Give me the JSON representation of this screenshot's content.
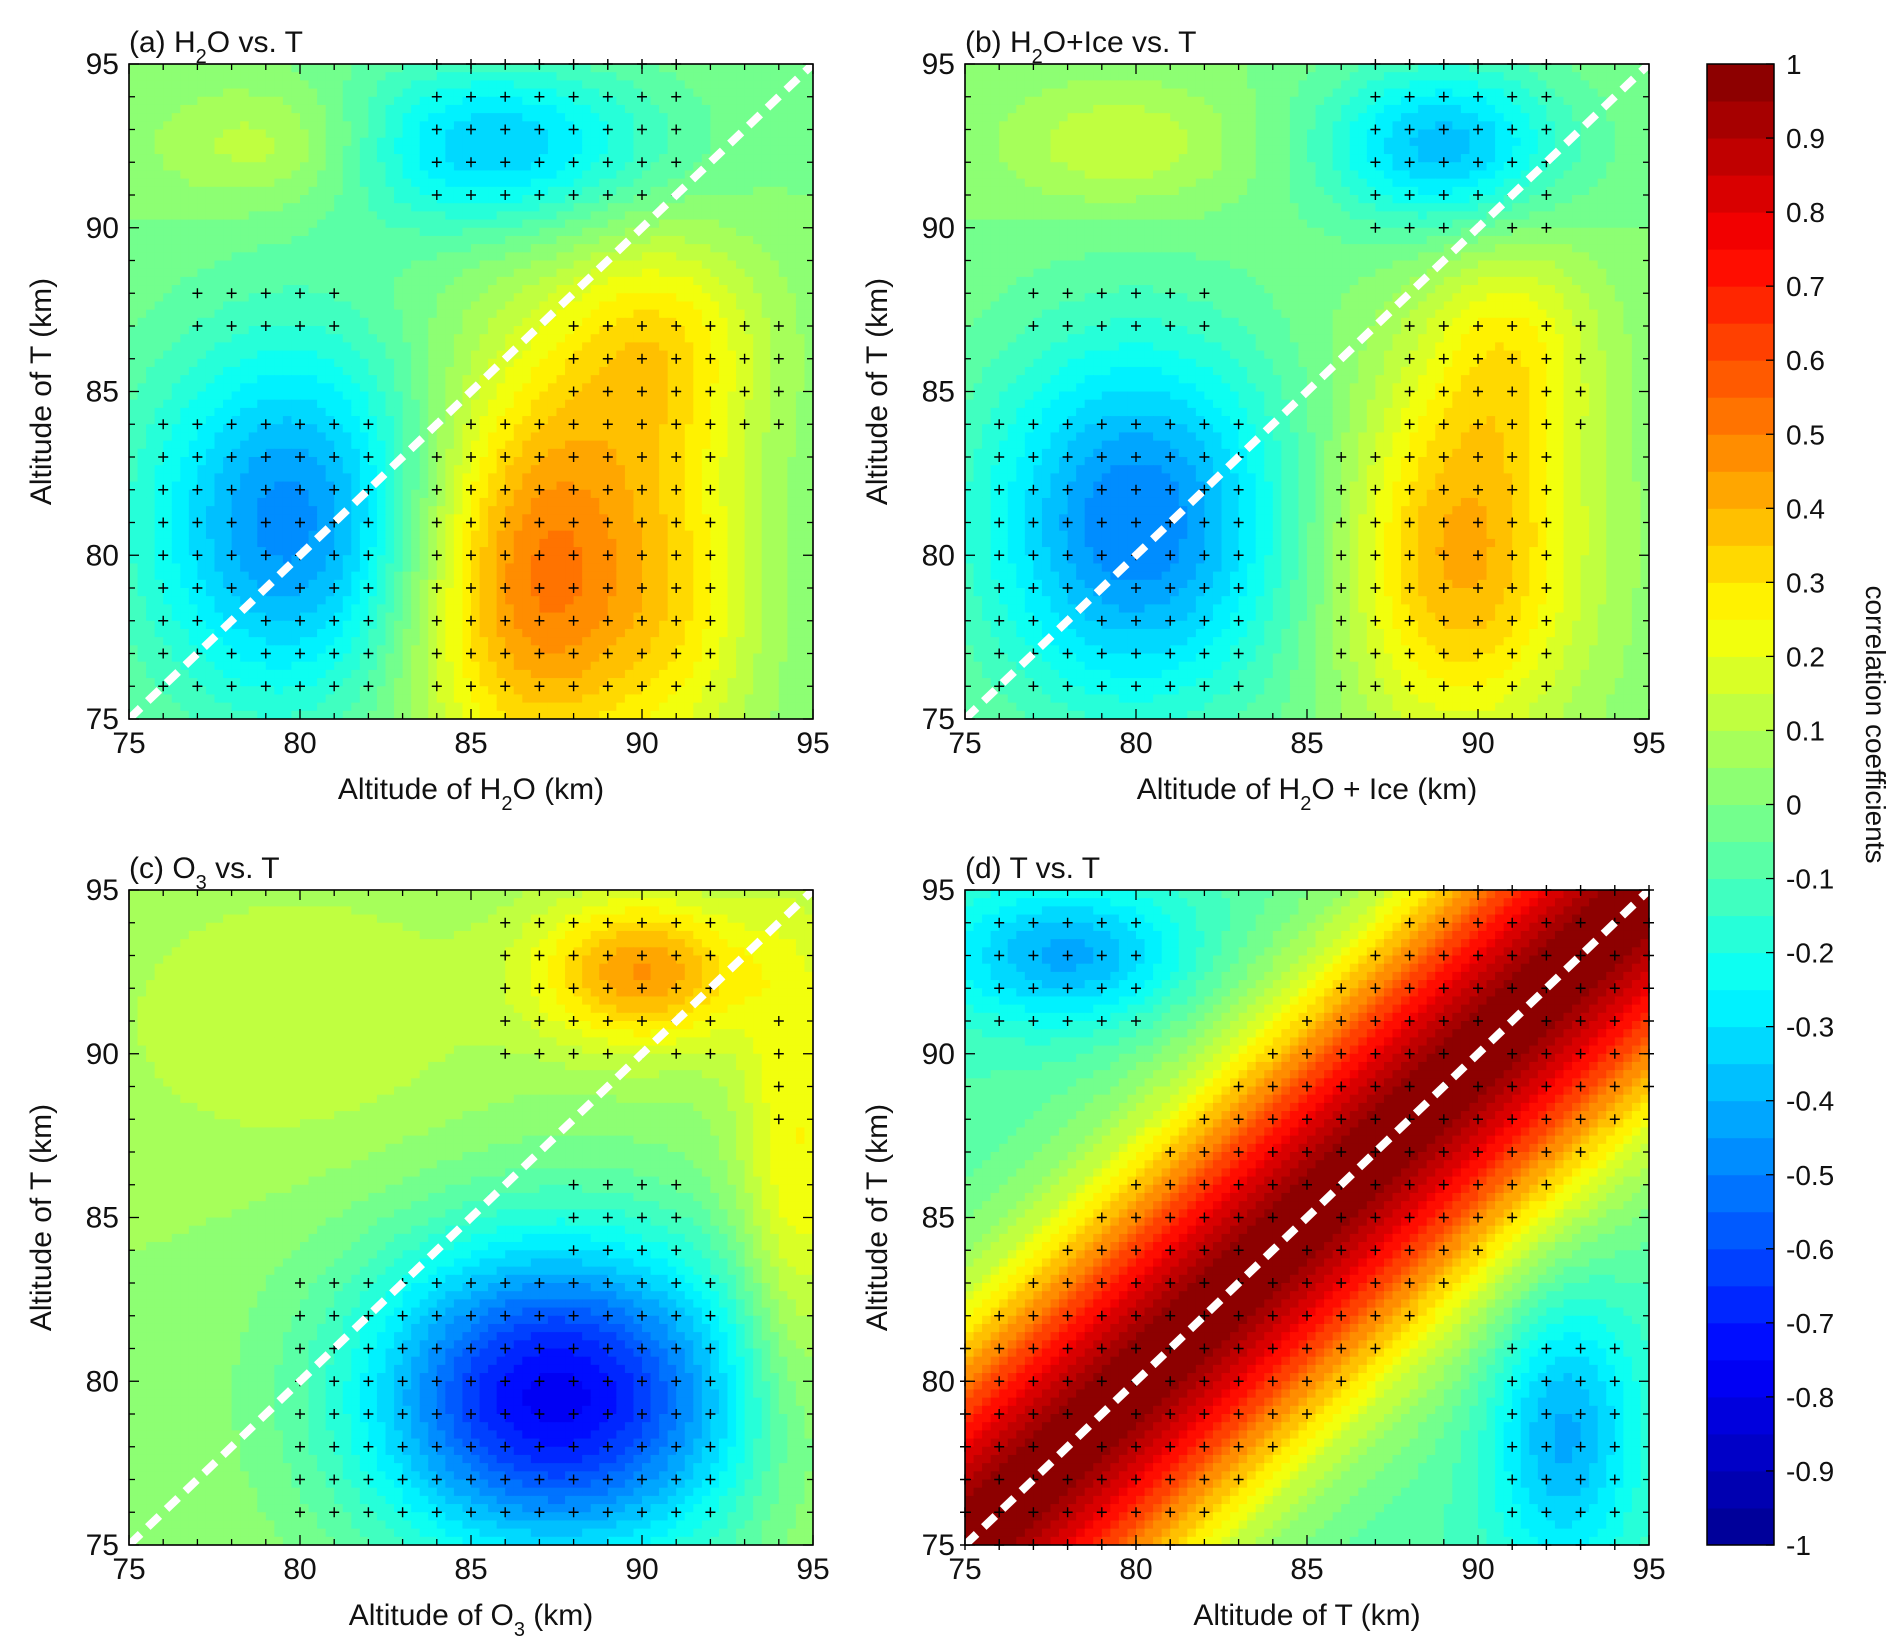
{
  "colorbar": {
    "title": "correlation coefficients",
    "min": -1,
    "max": 1,
    "ticks": [
      "1",
      "0.9",
      "0.8",
      "0.7",
      "0.6",
      "0.5",
      "0.4",
      "0.3",
      "0.2",
      "0.1",
      "0",
      "-0.1",
      "-0.2",
      "-0.3",
      "-0.4",
      "-0.5",
      "-0.6",
      "-0.7",
      "-0.8",
      "-0.9",
      "-1"
    ],
    "colormap": [
      "#00008f",
      "#0000ff",
      "#0080ff",
      "#00ffff",
      "#80ff80",
      "#ffff00",
      "#ff8000",
      "#ff0000",
      "#800000"
    ],
    "levels": 40
  },
  "chart_data": [
    {
      "type": "heatmap",
      "title_parts": [
        "(a) H",
        "2",
        "O vs. T"
      ],
      "xlabel_parts": [
        "Altitude of H",
        "2",
        "O (km)"
      ],
      "ylabel": "Altitude of T (km)",
      "xlim": [
        75,
        95
      ],
      "ylim": [
        75,
        95
      ],
      "xticks": [
        "75",
        "80",
        "85",
        "90",
        "95"
      ],
      "yticks": [
        "75",
        "80",
        "85",
        "90",
        "95"
      ],
      "diagonal": true,
      "base": 0.0,
      "blobs": [
        [
          80,
          81,
          3.2,
          4.0,
          -0.5
        ],
        [
          85.5,
          92.5,
          3.5,
          1.8,
          -0.36
        ],
        [
          79.5,
          92.5,
          2.5,
          1.4,
          0.18
        ],
        [
          87,
          79.5,
          3.0,
          4.5,
          0.55
        ],
        [
          90.5,
          86.5,
          2.2,
          2.5,
          0.25
        ],
        [
          91.5,
          78.5,
          1.5,
          4.0,
          0.12
        ]
      ],
      "marks": [
        [
          77,
          87,
          81,
          88
        ],
        [
          76,
          76,
          82,
          84
        ],
        [
          84,
          76,
          92,
          84
        ],
        [
          88,
          84,
          94,
          87
        ],
        [
          84,
          91,
          91,
          95
        ]
      ]
    },
    {
      "type": "heatmap",
      "title_parts": [
        "(b) H",
        "2",
        "O+Ice vs. T"
      ],
      "xlabel_parts": [
        "Altitude of H",
        "2",
        "O + Ice (km)"
      ],
      "ylabel": "Altitude of T (km)",
      "xlim": [
        75,
        95
      ],
      "ylim": [
        75,
        95
      ],
      "xticks": [
        "75",
        "80",
        "85",
        "90",
        "95"
      ],
      "yticks": [
        "75",
        "80",
        "85",
        "90",
        "95"
      ],
      "diagonal": true,
      "base": 0.0,
      "blobs": [
        [
          80,
          81,
          3.2,
          4.0,
          -0.5
        ],
        [
          89,
          92.5,
          2.5,
          1.8,
          -0.38
        ],
        [
          79.5,
          92.5,
          2.5,
          1.4,
          0.15
        ],
        [
          89.5,
          80,
          2.5,
          4.0,
          0.42
        ],
        [
          91,
          86.5,
          1.8,
          2.5,
          0.2
        ]
      ],
      "marks": [
        [
          77,
          87,
          82,
          88
        ],
        [
          76,
          76,
          83,
          84
        ],
        [
          86,
          76,
          92,
          83
        ],
        [
          88,
          84,
          93,
          87
        ],
        [
          87,
          90,
          92,
          95
        ]
      ]
    },
    {
      "type": "heatmap",
      "title_parts": [
        "(c) O",
        "3",
        " vs. T"
      ],
      "xlabel_parts": [
        "Altitude of O",
        "3",
        " (km)"
      ],
      "ylabel": "Altitude of T (km)",
      "xlim": [
        75,
        95
      ],
      "ylim": [
        75,
        95
      ],
      "xticks": [
        "75",
        "80",
        "85",
        "90",
        "95"
      ],
      "yticks": [
        "75",
        "80",
        "85",
        "90",
        "95"
      ],
      "diagonal": true,
      "base": 0.05,
      "blobs": [
        [
          87.5,
          79.5,
          4.0,
          3.5,
          -0.82
        ],
        [
          90,
          92.5,
          2.2,
          1.6,
          0.4
        ],
        [
          94.5,
          86,
          1.2,
          6.0,
          0.22
        ],
        [
          80,
          91,
          4.0,
          3.0,
          0.1
        ]
      ],
      "marks": [
        [
          80,
          76,
          92,
          83
        ],
        [
          88,
          84,
          91,
          86
        ],
        [
          86,
          90,
          92,
          94
        ],
        [
          94,
          88,
          94,
          91
        ]
      ]
    },
    {
      "type": "heatmap",
      "title_parts": [
        "(d) T vs. T"
      ],
      "xlabel_parts": [
        "Altitude of T (km)"
      ],
      "ylabel": "Altitude of T (km)",
      "xlim": [
        75,
        95
      ],
      "ylim": [
        75,
        95
      ],
      "xticks": [
        "75",
        "80",
        "85",
        "90",
        "95"
      ],
      "yticks": [
        "75",
        "80",
        "85",
        "90",
        "95"
      ],
      "diagonal": true,
      "base": -0.1,
      "ridge_width": 4.5,
      "blobs": [
        [
          78,
          93,
          2.5,
          1.5,
          -0.32
        ],
        [
          92.5,
          78.5,
          1.5,
          3.0,
          -0.32
        ]
      ],
      "marks": [
        [
          75,
          75,
          95,
          95
        ],
        [
          76,
          91,
          80,
          94
        ],
        [
          91,
          75,
          94,
          81
        ]
      ]
    }
  ]
}
